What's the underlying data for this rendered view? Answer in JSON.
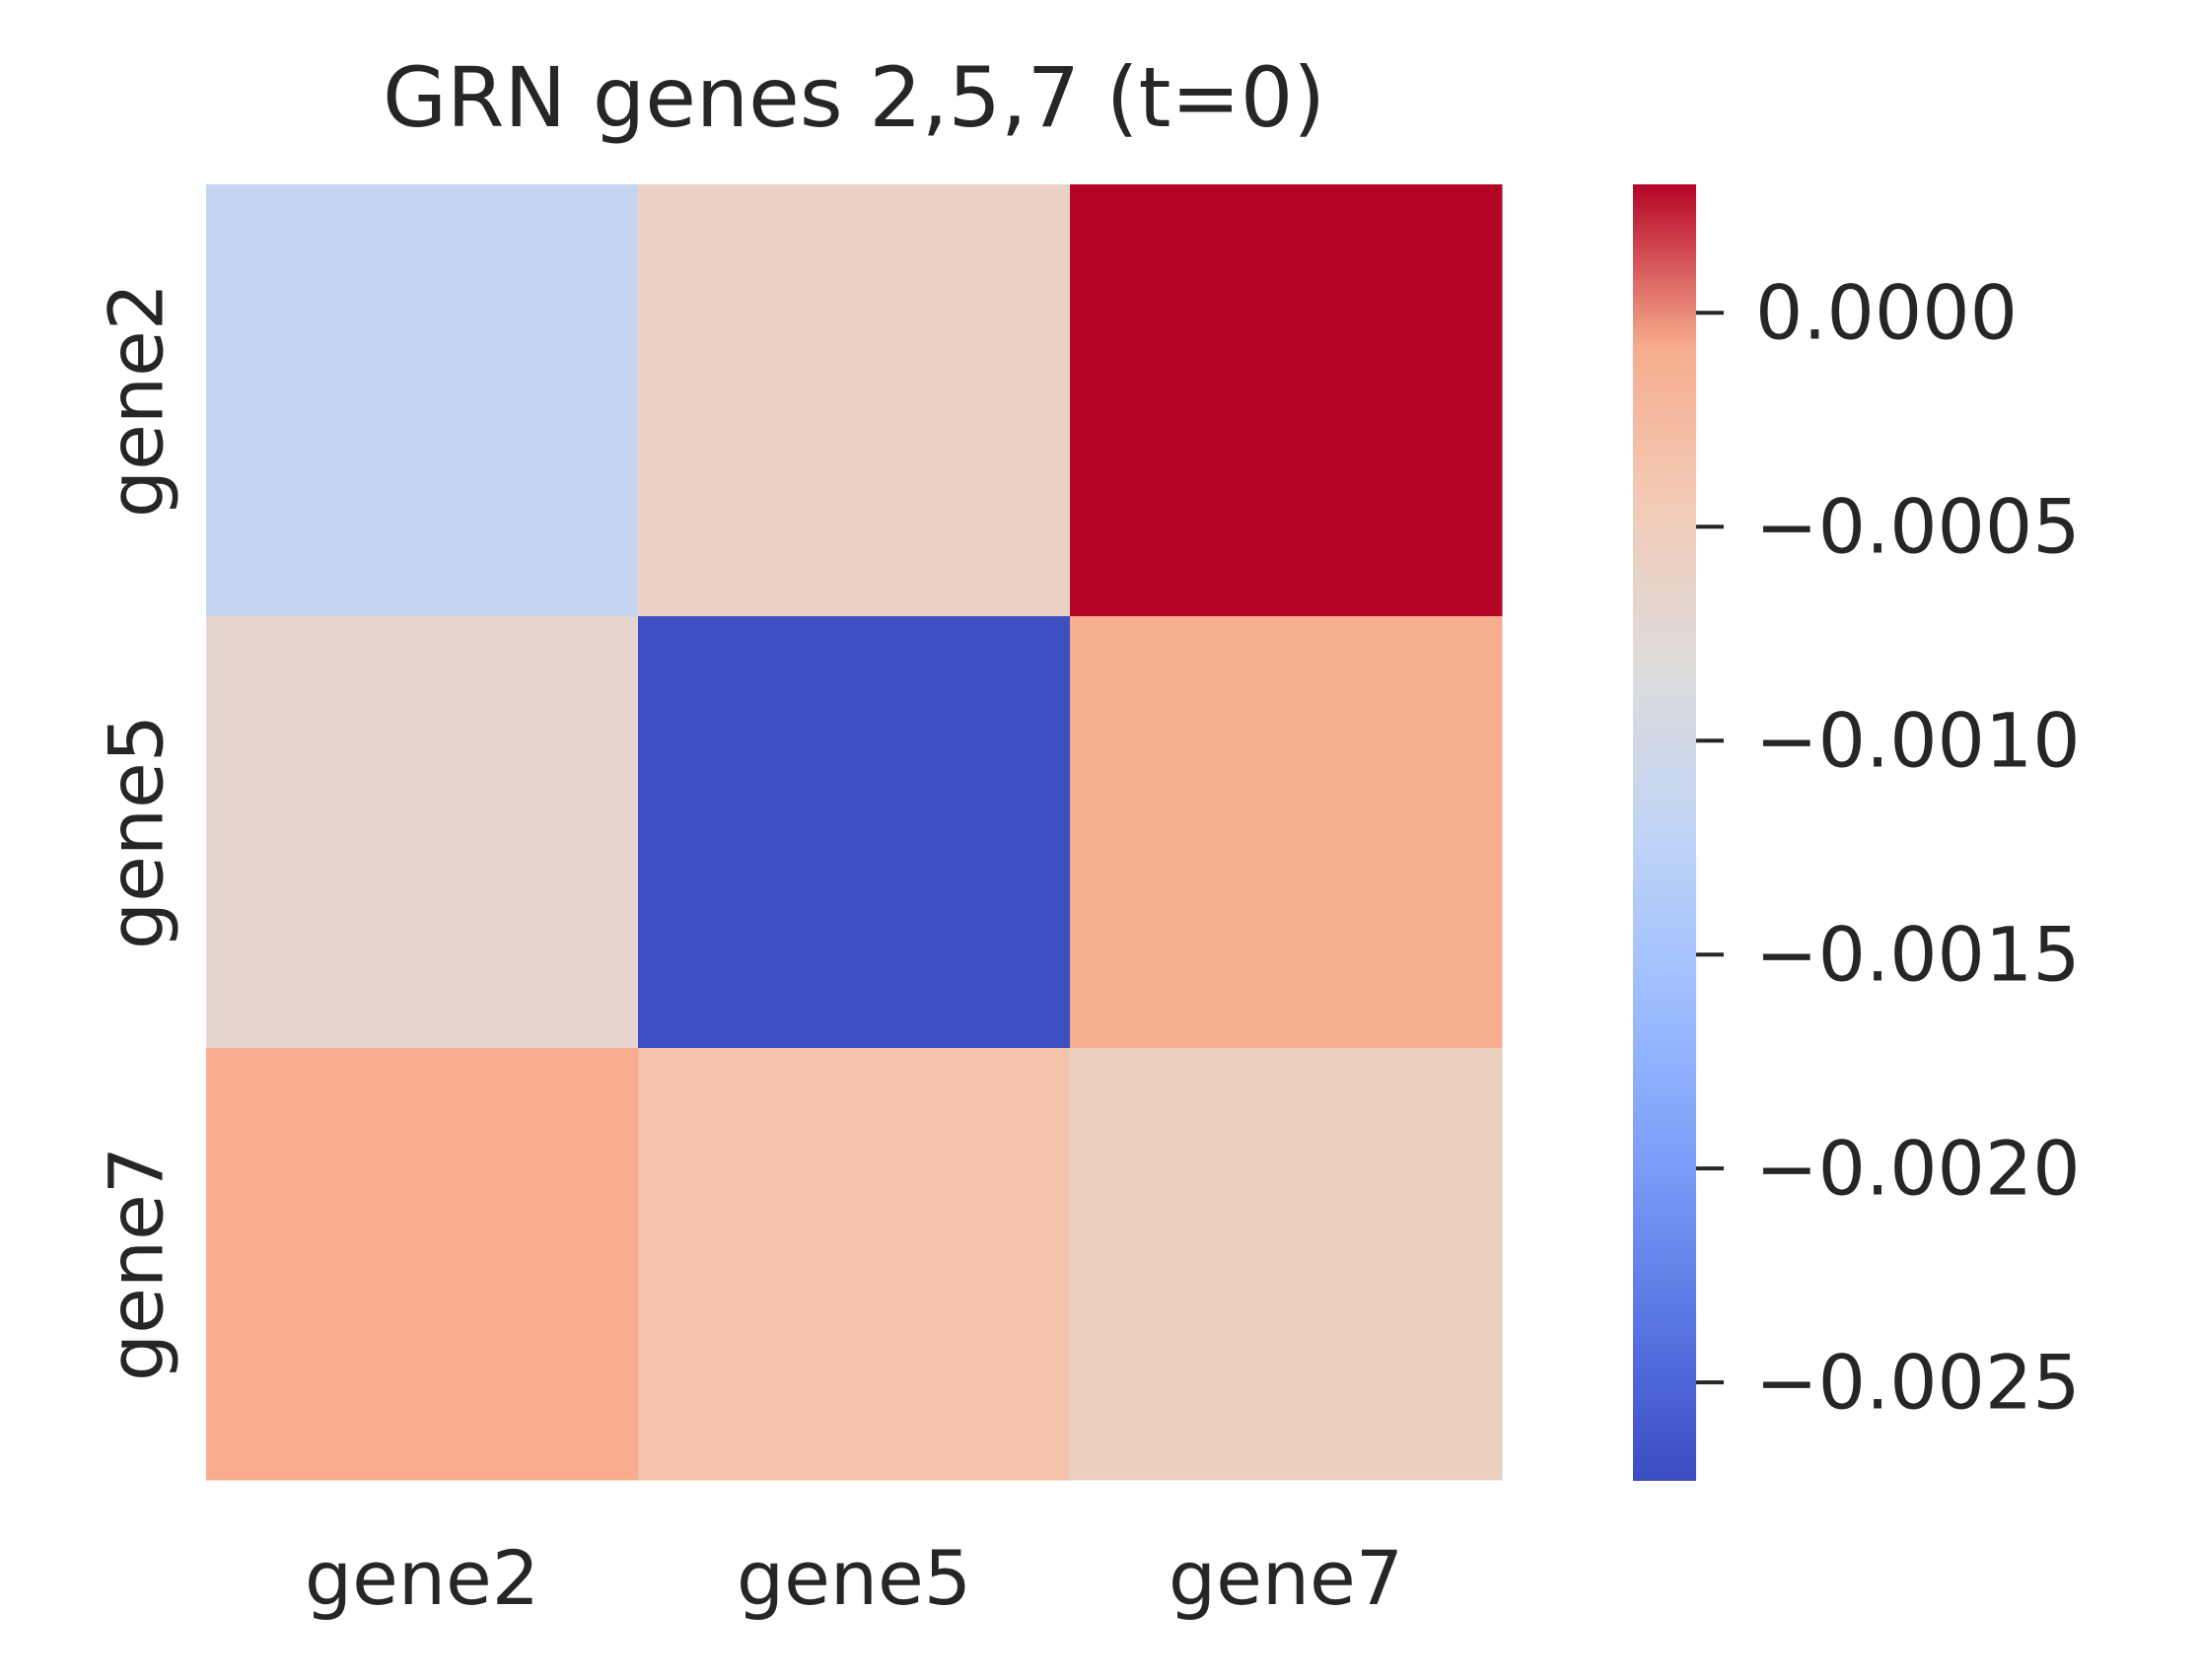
{
  "chart_data": {
    "type": "heatmap",
    "title": "GRN genes 2,5,7 (t=0)",
    "x_categories": [
      "gene2",
      "gene5",
      "gene7"
    ],
    "y_categories": [
      "gene2",
      "gene5",
      "gene7"
    ],
    "values": [
      [
        -0.00115,
        -0.0006,
        0.0003
      ],
      [
        -0.00068,
        -0.0027,
        -0.0001
      ],
      [
        -8e-05,
        -0.00033,
        -0.00055
      ]
    ],
    "colorbar": {
      "colormap": "coolwarm",
      "vmin": -0.00273,
      "vmax": 0.0003,
      "ticks": [
        0.0,
        -0.0005,
        -0.001,
        -0.0015,
        -0.002,
        -0.0025
      ],
      "tick_labels": [
        "0.0000",
        "−0.0005",
        "−0.0010",
        "−0.0015",
        "−0.0020",
        "−0.0025"
      ]
    },
    "grid": false
  }
}
